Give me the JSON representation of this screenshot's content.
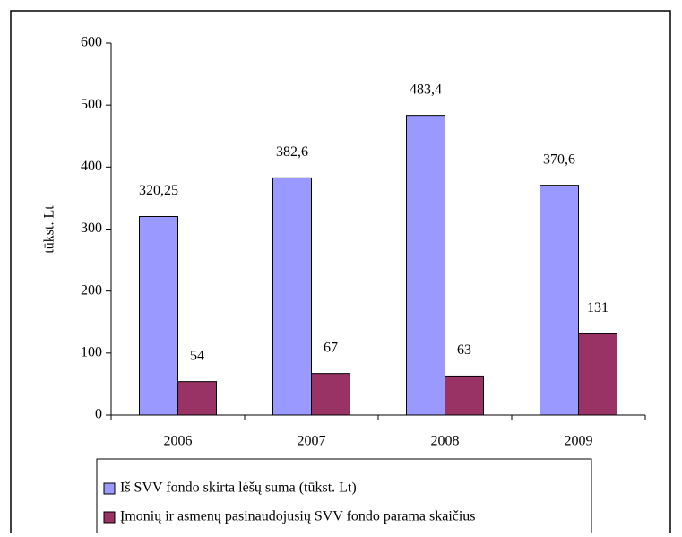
{
  "chart_data": {
    "type": "bar",
    "y_label": "tūkst. Lt",
    "categories": [
      "2006",
      "2007",
      "2008",
      "2009"
    ],
    "series": [
      {
        "name": "Iš SVV fondo skirta lėšų suma   (tūkst. Lt)",
        "color": "#9999ff",
        "values": [
          320.25,
          382.6,
          483.4,
          370.6
        ],
        "value_labels": [
          "320,25",
          "382,6",
          "483,4",
          "370,6"
        ]
      },
      {
        "name": "Įmonių ir asmenų pasinaudojusių SVV fondo parama skaičius",
        "color": "#993366",
        "values": [
          54,
          67,
          63,
          131
        ],
        "value_labels": [
          "54",
          "67",
          "63",
          "131"
        ]
      }
    ],
    "ylim": [
      0,
      600
    ],
    "yticks": [
      0,
      100,
      200,
      300,
      400,
      500,
      600
    ],
    "legend": "bottom"
  }
}
